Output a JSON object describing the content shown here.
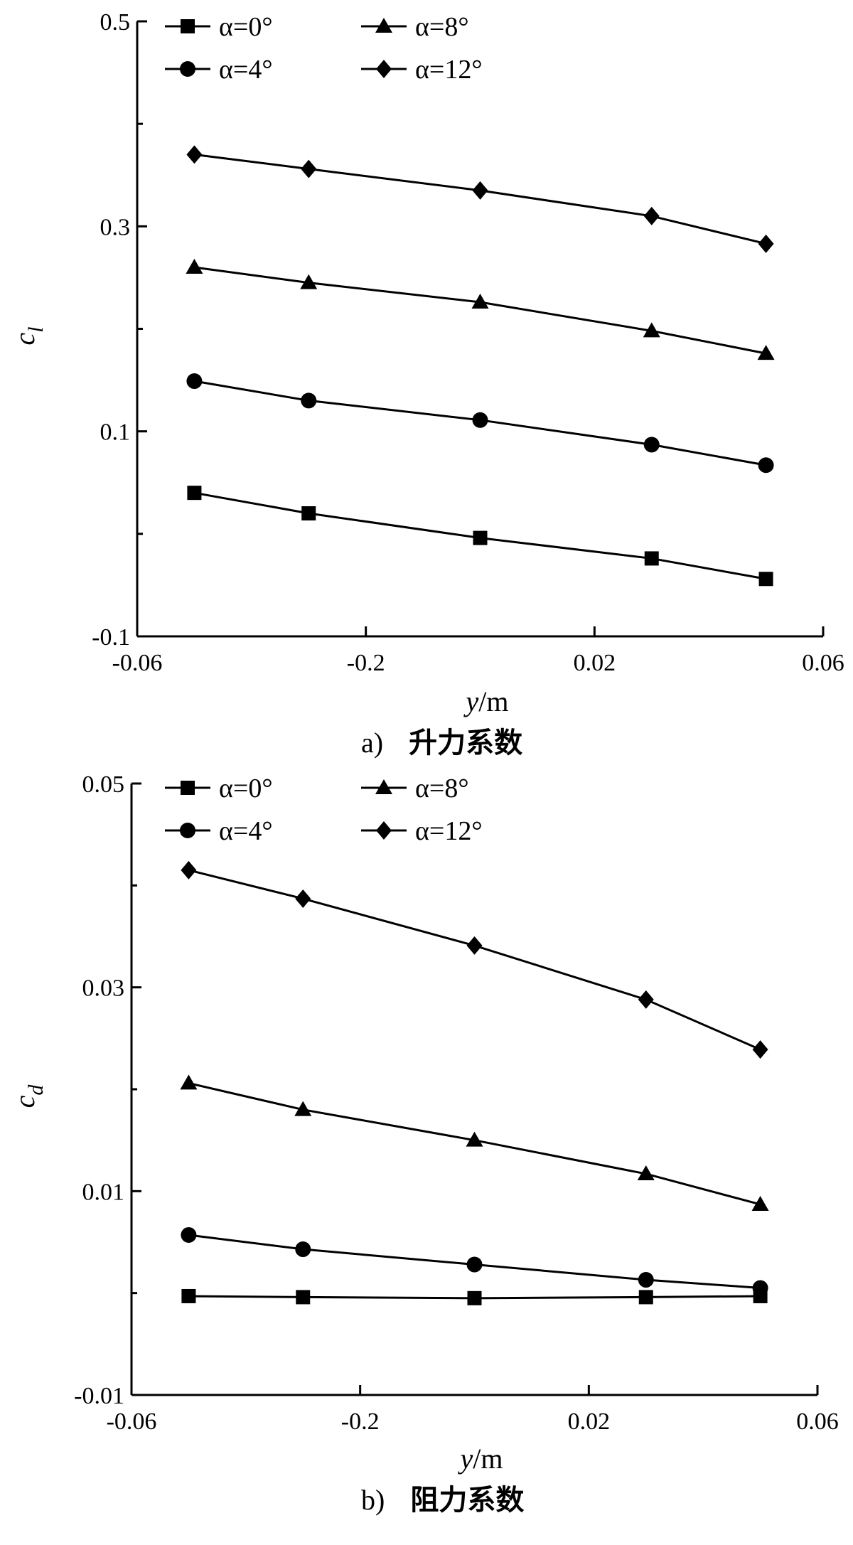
{
  "chart_data": [
    {
      "type": "line",
      "caption_letter": "a)",
      "caption_text": "升力系数",
      "ylabel": "c",
      "ylabel_sub": "l",
      "xlabel": "y",
      "xlabel_unit": "/m",
      "xlim": [
        -0.06,
        0.06
      ],
      "ylim": [
        -0.1,
        0.5
      ],
      "xticks": [
        "-0.06",
        "-0.2",
        "0.02",
        "0.06"
      ],
      "yticks": [
        "0.5",
        "0.3",
        "0.1",
        "-0.1"
      ],
      "legend_position": "top-left",
      "x": [
        -0.05,
        -0.03,
        0.0,
        0.03,
        0.05
      ],
      "series": [
        {
          "name": "α=0°",
          "marker": "square",
          "values": [
            0.04,
            0.02,
            -0.004,
            -0.024,
            -0.044
          ]
        },
        {
          "name": "α=4°",
          "marker": "circle",
          "values": [
            0.149,
            0.13,
            0.111,
            0.087,
            0.067
          ]
        },
        {
          "name": "α=8°",
          "marker": "triangle",
          "values": [
            0.26,
            0.245,
            0.226,
            0.198,
            0.176
          ]
        },
        {
          "name": "α=12°",
          "marker": "diamond",
          "values": [
            0.37,
            0.356,
            0.335,
            0.31,
            0.283
          ]
        }
      ]
    },
    {
      "type": "line",
      "caption_letter": "b)",
      "caption_text": "阻力系数",
      "ylabel": "c",
      "ylabel_sub": "d",
      "xlabel": "y",
      "xlabel_unit": "/m",
      "xlim": [
        -0.06,
        0.06
      ],
      "ylim": [
        -0.01,
        0.05
      ],
      "xticks": [
        "-0.06",
        "-0.2",
        "0.02",
        "0.06"
      ],
      "yticks": [
        "0.05",
        "0.03",
        "0.01",
        "-0.01"
      ],
      "legend_position": "top-left",
      "x": [
        -0.05,
        -0.03,
        0.0,
        0.03,
        0.05
      ],
      "series": [
        {
          "name": "α=0°",
          "marker": "square",
          "values": [
            -0.0003,
            -0.0004,
            -0.0005,
            -0.0004,
            -0.0003
          ]
        },
        {
          "name": "α=4°",
          "marker": "circle",
          "values": [
            0.0057,
            0.0043,
            0.0028,
            0.0013,
            0.0005
          ]
        },
        {
          "name": "α=8°",
          "marker": "triangle",
          "values": [
            0.0206,
            0.018,
            0.015,
            0.0117,
            0.0087
          ]
        },
        {
          "name": "α=12°",
          "marker": "diamond",
          "values": [
            0.0415,
            0.0387,
            0.0341,
            0.0288,
            0.0239
          ]
        }
      ]
    }
  ]
}
